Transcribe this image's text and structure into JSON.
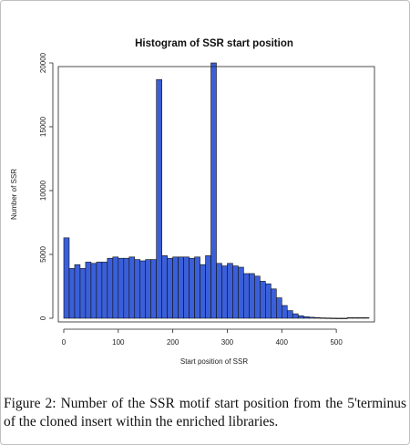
{
  "chart_data": {
    "type": "bar",
    "title": "Histogram of SSR start position",
    "xlabel": "Start position of SSR",
    "ylabel": "Number of SSR",
    "xlim": [
      -10,
      570
    ],
    "ylim": [
      0,
      20000
    ],
    "x_ticks": [
      0,
      100,
      200,
      300,
      400,
      500
    ],
    "x_tick_labels": [
      "0",
      "100",
      "200",
      "300",
      "400",
      "500"
    ],
    "y_ticks": [
      0,
      5000,
      10000,
      15000,
      20000
    ],
    "y_tick_labels": [
      "0",
      "5000",
      "10000",
      "15000",
      "20000"
    ],
    "bin_width": 10,
    "bin_starts": [
      0,
      10,
      20,
      30,
      40,
      50,
      60,
      70,
      80,
      90,
      100,
      110,
      120,
      130,
      140,
      150,
      160,
      170,
      180,
      190,
      200,
      210,
      220,
      230,
      240,
      250,
      260,
      270,
      280,
      290,
      300,
      310,
      320,
      330,
      340,
      350,
      360,
      370,
      380,
      390,
      400,
      410,
      420,
      430,
      440,
      450,
      460,
      470,
      480,
      490,
      500,
      510,
      520,
      530,
      540,
      550
    ],
    "values": [
      6300,
      3900,
      4200,
      3900,
      4400,
      4300,
      4400,
      4400,
      4700,
      4800,
      4700,
      4700,
      4800,
      4600,
      4500,
      4600,
      4600,
      18700,
      4900,
      4700,
      4800,
      4800,
      4800,
      4700,
      4800,
      4200,
      4900,
      20000,
      4300,
      4100,
      4300,
      4100,
      4000,
      3500,
      3500,
      3300,
      2900,
      2700,
      2300,
      1600,
      1000,
      600,
      350,
      200,
      120,
      80,
      50,
      30,
      20,
      10,
      5,
      5,
      0,
      0,
      0,
      0
    ],
    "bar_color": "#3a5fd9",
    "grid": false
  },
  "caption": {
    "label": "Figure 2:",
    "text": " Number of the SSR motif start position from the 5'terminus of the cloned insert within the enriched libraries."
  }
}
